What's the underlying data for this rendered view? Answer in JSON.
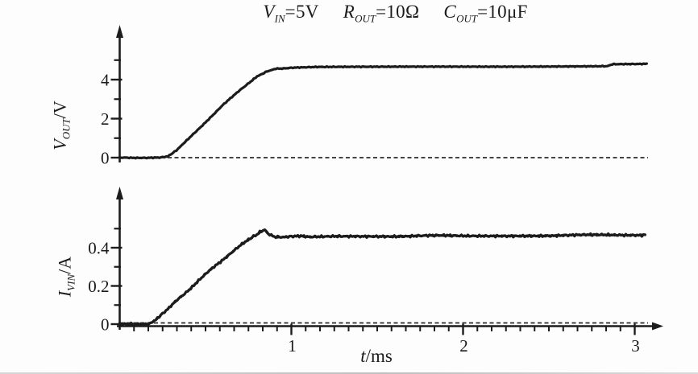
{
  "figure": {
    "title": {
      "text": "V_IN=5V  R_OUT=10Ω  C_OUT=10μF",
      "parts": [
        {
          "var": "V",
          "sub": "IN",
          "rest": "=5V"
        },
        {
          "var": "R",
          "sub": "OUT",
          "rest": "=10Ω"
        },
        {
          "var": "C",
          "sub": "OUT",
          "rest": "=10μF"
        }
      ]
    },
    "axis_labels": {
      "top_y": {
        "var": "V",
        "sub": "OUT",
        "rest": "/V",
        "text": "V_OUT/V"
      },
      "bottom_y": {
        "var": "I",
        "sub": "VIN",
        "rest": "/A",
        "text": "I_VIN/A"
      },
      "x": {
        "var": "t",
        "rest": "/ms",
        "text": "t/ms"
      }
    }
  },
  "chart_data": [
    {
      "type": "line",
      "name": "output-voltage",
      "title": "V_IN=5V  R_OUT=10Ω  C_OUT=10μF",
      "xlabel": "t/ms",
      "ylabel": "V_OUT/V",
      "xlim": [
        0,
        3.2
      ],
      "ylim": [
        0,
        6.6
      ],
      "grid": false,
      "legend": false,
      "zero_reference_line": "dashed",
      "x_ticks_labeled": [
        1,
        2,
        3
      ],
      "y_ticks_labeled": [
        0,
        2,
        4
      ],
      "y_ticks_minor": [
        1,
        3,
        5
      ],
      "series": [
        {
          "name": "V_OUT",
          "x": [
            0,
            0.24,
            0.28,
            0.33,
            0.4,
            0.5,
            0.6,
            0.7,
            0.8,
            0.86,
            0.91,
            1.0,
            1.15,
            1.5,
            2.0,
            2.5,
            2.84,
            2.87,
            3.07
          ],
          "y": [
            0,
            0.0,
            0.07,
            0.38,
            0.95,
            1.82,
            2.68,
            3.47,
            4.16,
            4.44,
            4.56,
            4.61,
            4.64,
            4.65,
            4.67,
            4.68,
            4.69,
            4.8,
            4.82
          ]
        }
      ]
    },
    {
      "type": "line",
      "name": "input-current",
      "title": "V_IN=5V  R_OUT=10Ω  C_OUT=10μF",
      "xlabel": "t/ms",
      "ylabel": "I_VIN/A",
      "xlim": [
        0,
        3.2
      ],
      "ylim": [
        0,
        0.72
      ],
      "grid": false,
      "legend": false,
      "zero_reference_line": "dashed",
      "x_ticks_labeled": [
        1,
        2,
        3
      ],
      "x_minor_per_major": 12,
      "y_ticks_labeled": [
        0,
        0.2,
        0.4
      ],
      "y_ticks_minor": [
        0.1,
        0.3,
        0.5
      ],
      "series": [
        {
          "name": "I_VIN",
          "x": [
            0,
            0.17,
            0.21,
            0.28,
            0.36,
            0.45,
            0.55,
            0.65,
            0.74,
            0.8,
            0.825,
            0.845,
            0.865,
            0.9,
            0.95,
            1.02,
            1.1,
            1.25,
            1.6,
            2.0,
            2.5,
            3.06
          ],
          "y": [
            0,
            0.0,
            0.02,
            0.08,
            0.145,
            0.22,
            0.3,
            0.375,
            0.435,
            0.468,
            0.485,
            0.492,
            0.47,
            0.458,
            0.452,
            0.462,
            0.456,
            0.462,
            0.461,
            0.463,
            0.464,
            0.468
          ]
        }
      ]
    }
  ]
}
